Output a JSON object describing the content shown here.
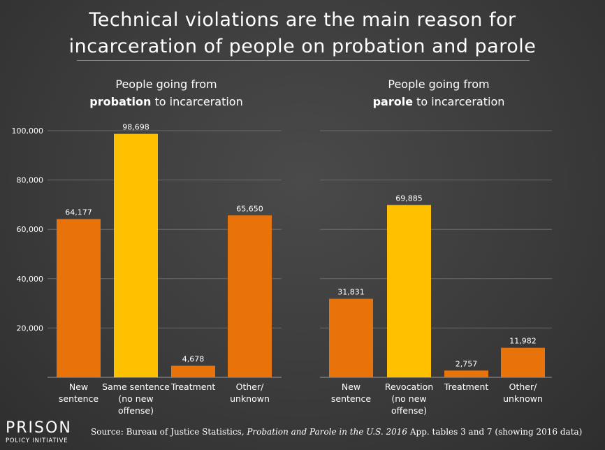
{
  "title_line1": "Technical violations are the main reason for",
  "title_line2": "incarceration of people on probation and parole",
  "colors": {
    "orange": "#e8730a",
    "yellow": "#ffc000",
    "grid": "#6a6a6a",
    "axis": "#9a9a9a",
    "text": "#ffffff"
  },
  "left_subtitle": {
    "line1": "People going from",
    "bold": "probation",
    "rest": " to incarceration"
  },
  "right_subtitle": {
    "line1": "People going from",
    "bold": "parole",
    "rest": " to incarceration"
  },
  "source": {
    "prefix": "Source: Bureau of Justice Statistics, ",
    "italic": "Probation and Parole in the U.S. 2016",
    "suffix": " App. tables 3 and 7 (showing 2016 data)"
  },
  "logo": {
    "top": "PRISON",
    "bottom": "POLICY INITIATIVE"
  },
  "chart_data": [
    {
      "type": "bar",
      "title": "People going from probation to incarceration",
      "categories": [
        [
          "New",
          "sentence"
        ],
        [
          "Same sentence",
          "(no new",
          "offense)"
        ],
        [
          "Treatment"
        ],
        [
          "Other/",
          "unknown"
        ]
      ],
      "values": [
        64177,
        98698,
        4678,
        65650
      ],
      "labels": [
        "64,177",
        "98,698",
        "4,678",
        "65,650"
      ],
      "highlight": [
        false,
        true,
        false,
        false
      ],
      "ylim": [
        0,
        100000
      ],
      "yticks": [
        20000,
        40000,
        60000,
        80000,
        100000
      ],
      "ytick_labels": [
        "20,000",
        "40,000",
        "60,000",
        "80,000",
        "100,000"
      ]
    },
    {
      "type": "bar",
      "title": "People going from parole to incarceration",
      "categories": [
        [
          "New",
          "sentence"
        ],
        [
          "Revocation",
          "(no new",
          "offense)"
        ],
        [
          "Treatment"
        ],
        [
          "Other/",
          "unknown"
        ]
      ],
      "values": [
        31831,
        69885,
        2757,
        11982
      ],
      "labels": [
        "31,831",
        "69,885",
        "2,757",
        "11,982"
      ],
      "highlight": [
        false,
        true,
        false,
        false
      ],
      "ylim": [
        0,
        100000
      ]
    }
  ]
}
